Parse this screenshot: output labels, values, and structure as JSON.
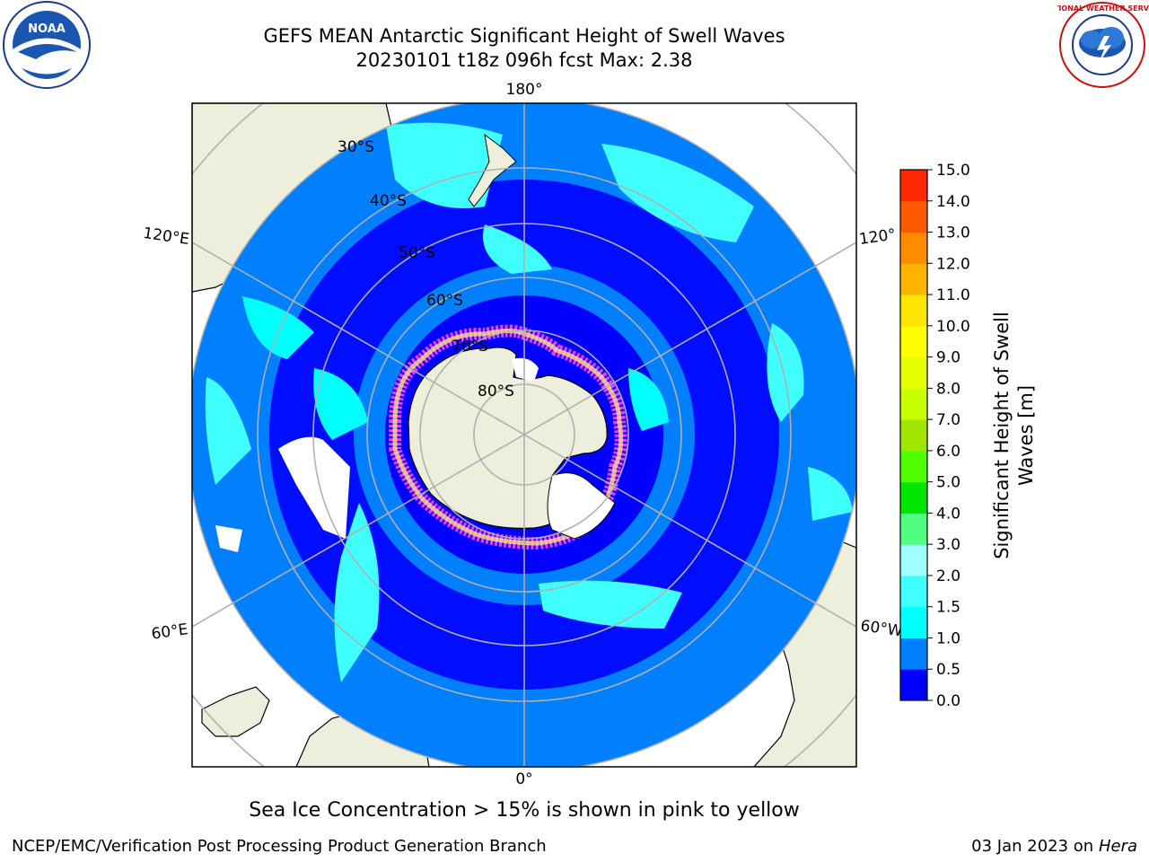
{
  "header": {
    "title_line1": "GEFS MEAN Antarctic Significant Height of Swell Waves",
    "title_line2": "20230101 t18z 096h fcst   Max: 2.38"
  },
  "logos": {
    "left": {
      "text": "NOAA",
      "icon": "noaa-logo"
    },
    "right": {
      "text": "NATIONAL WEATHER SERVICE",
      "icon": "nws-logo"
    }
  },
  "map": {
    "projection": "south-polar-stereographic",
    "longitude_labels": [
      "180°",
      "120°E",
      "120°",
      "60°E",
      "60°W",
      "0°"
    ],
    "latitude_labels": [
      "30°S",
      "40°S",
      "50°S",
      "60°S",
      "70°S",
      "80°S"
    ],
    "colors": {
      "ocean_deep": "#0000ff",
      "ocean_mid": "#0080ff",
      "ocean_light": "#00ffff",
      "ocean_lighter": "#40ffff",
      "land": "#eeeedd",
      "ice_edge": "#ff40ff",
      "grid": "#b0b0b0"
    }
  },
  "colorbar": {
    "label_line1": "Significant Height of Swell",
    "label_line2": "Waves [m]",
    "ticks": [
      "0.0",
      "0.5",
      "1.0",
      "1.5",
      "2.0",
      "3.0",
      "4.0",
      "5.0",
      "6.0",
      "7.0",
      "8.0",
      "9.0",
      "10.0",
      "11.0",
      "12.0",
      "13.0",
      "14.0",
      "15.0"
    ],
    "colors": [
      "#0000ff",
      "#0080ff",
      "#00ffff",
      "#40ffff",
      "#a0ffff",
      "#50ff80",
      "#00e600",
      "#50ff00",
      "#a0e600",
      "#c8ff00",
      "#e6ff00",
      "#ffff00",
      "#ffe600",
      "#ffb400",
      "#ff8c00",
      "#ff5a00",
      "#ff2800"
    ]
  },
  "note": "Sea Ice Concentration > 15% is shown in pink to yellow",
  "footer": {
    "left": "NCEP/EMC/Verification Post Processing Product Generation Branch",
    "date_prefix": "03 Jan 2023 on ",
    "machine": "Hera"
  }
}
